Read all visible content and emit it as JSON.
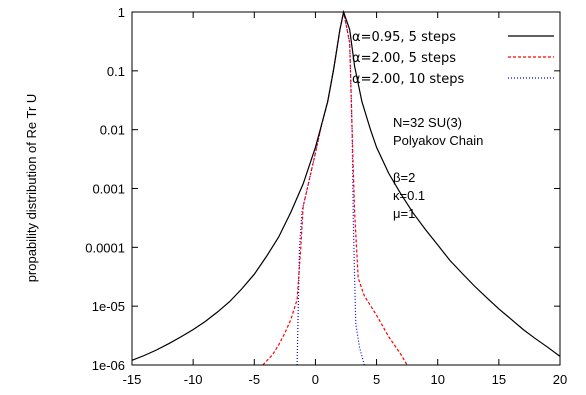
{
  "chart_data": {
    "type": "line",
    "ylabel": "propability distribution of Re Tr U",
    "xlim": [
      -15,
      20
    ],
    "ylim": [
      1e-06,
      1
    ],
    "yscale": "log",
    "grid": false,
    "legend_position": "top-right",
    "x_ticks": [
      -15,
      -10,
      -5,
      0,
      5,
      10,
      15,
      20
    ],
    "x_tick_labels": [
      "-15",
      "-10",
      "-5",
      "0",
      "5",
      "10",
      "15",
      "20"
    ],
    "y_ticks": [
      1e-06,
      1e-05,
      0.0001,
      0.001,
      0.01,
      0.1,
      1
    ],
    "y_tick_labels": [
      "1e-06",
      "1e-05",
      "0.0001",
      "0.001",
      "0.01",
      "0.1",
      "1"
    ],
    "annotations": [
      "N=32 SU(3)",
      "Polyakov Chain",
      "β=2",
      "κ=0.1",
      "μ=1"
    ],
    "series": [
      {
        "name": "α=0.95,   5 steps",
        "color": "#000000",
        "style": "solid",
        "points": [
          [
            -15,
            1.2e-06
          ],
          [
            -14,
            1.45e-06
          ],
          [
            -13,
            1.8e-06
          ],
          [
            -12,
            2.3e-06
          ],
          [
            -11,
            3e-06
          ],
          [
            -10,
            4e-06
          ],
          [
            -9,
            5.5e-06
          ],
          [
            -8,
            8e-06
          ],
          [
            -7,
            1.2e-05
          ],
          [
            -6,
            2e-05
          ],
          [
            -5,
            3.5e-05
          ],
          [
            -4,
            7e-05
          ],
          [
            -3,
            0.00015
          ],
          [
            -2,
            0.0004
          ],
          [
            -1,
            0.0012
          ],
          [
            0,
            0.005
          ],
          [
            0.5,
            0.012
          ],
          [
            1,
            0.03
          ],
          [
            1.5,
            0.11
          ],
          [
            2,
            0.5
          ],
          [
            2.3,
            1.0
          ],
          [
            2.8,
            0.5
          ],
          [
            3.2,
            0.12
          ],
          [
            3.8,
            0.03
          ],
          [
            4.5,
            0.01
          ],
          [
            5,
            0.005
          ],
          [
            6,
            0.0018
          ],
          [
            7,
            0.0008
          ],
          [
            8,
            0.00038
          ],
          [
            9,
            0.0002
          ],
          [
            10,
            0.00011
          ],
          [
            11,
            6e-05
          ],
          [
            12,
            3.6e-05
          ],
          [
            13,
            2.2e-05
          ],
          [
            14,
            1.4e-05
          ],
          [
            15,
            9e-06
          ],
          [
            16,
            6e-06
          ],
          [
            17,
            4e-06
          ],
          [
            18,
            2.8e-06
          ],
          [
            19,
            2e-06
          ],
          [
            20,
            1.4e-06
          ]
        ]
      },
      {
        "name": "α=2.00,   5 steps",
        "color": "#ff0000",
        "style": "dashed",
        "points": [
          [
            -4.3,
            1e-06
          ],
          [
            -3.5,
            1.5e-06
          ],
          [
            -3,
            2.2e-06
          ],
          [
            -2.5,
            3.5e-06
          ],
          [
            -2,
            6e-06
          ],
          [
            -1.5,
            1.3e-05
          ],
          [
            -1.2,
            0.0001
          ],
          [
            -1,
            0.0005
          ],
          [
            0,
            0.004
          ],
          [
            0.5,
            0.012
          ],
          [
            1,
            0.03
          ],
          [
            1.5,
            0.11
          ],
          [
            2,
            0.5
          ],
          [
            2.3,
            1.0
          ],
          [
            2.8,
            0.3
          ],
          [
            3,
            0.01
          ],
          [
            3.2,
            0.0004
          ],
          [
            3.5,
            3e-05
          ],
          [
            4,
            1.5e-05
          ],
          [
            5,
            7e-06
          ],
          [
            6,
            3e-06
          ],
          [
            7,
            1.5e-06
          ],
          [
            7.5,
            1e-06
          ]
        ]
      },
      {
        "name": "α=2.00, 10 steps",
        "color": "#0000ff",
        "style": "dotted",
        "points": [
          [
            -1.5,
            1e-06
          ],
          [
            -1.4,
            1e-05
          ],
          [
            -1.3,
            0.0001
          ],
          [
            -1.1,
            0.0004
          ],
          [
            -1,
            0.0005
          ],
          [
            0,
            0.004
          ],
          [
            0.5,
            0.012
          ],
          [
            1,
            0.03
          ],
          [
            1.5,
            0.11
          ],
          [
            2,
            0.5
          ],
          [
            2.3,
            1.0
          ],
          [
            2.8,
            0.3
          ],
          [
            3,
            0.01
          ],
          [
            3.1,
            0.0003
          ],
          [
            3.2,
            3e-05
          ],
          [
            3.3,
            5e-06
          ],
          [
            3.6,
            2e-06
          ],
          [
            4,
            1e-06
          ]
        ]
      }
    ]
  }
}
